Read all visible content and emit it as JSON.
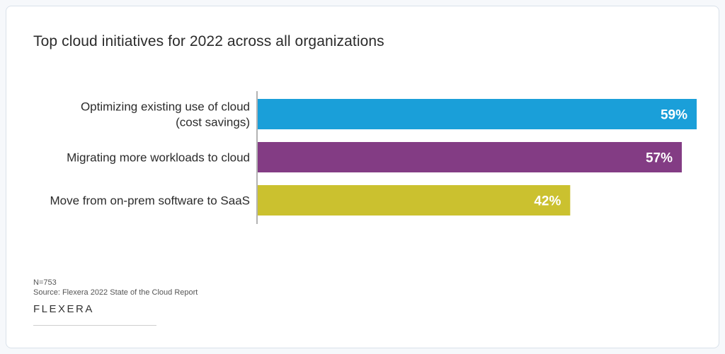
{
  "title": "Top cloud initiatives for 2022 across all organizations",
  "footer": {
    "n_label": "N=753",
    "source": "Source: Flexera 2022 State of the Cloud Report",
    "brand": "FLEXERA"
  },
  "colors": {
    "background": "#ffffff",
    "title": "#2b2b2b",
    "axis": "#9a9a9a"
  },
  "chart_data": {
    "type": "bar",
    "orientation": "horizontal",
    "title": "Top cloud initiatives for 2022 across all organizations",
    "categories": [
      [
        "Optimizing existing use of cloud",
        "(cost savings)"
      ],
      [
        "Migrating more workloads to cloud"
      ],
      [
        "Move from on-prem software to SaaS"
      ]
    ],
    "values": [
      59,
      57,
      42
    ],
    "value_labels": [
      "59%",
      "57%",
      "42%"
    ],
    "colors": [
      "#1a9fd9",
      "#833c84",
      "#cbc12f"
    ],
    "xlim": [
      0,
      59
    ],
    "grid": false,
    "legend": "none"
  }
}
